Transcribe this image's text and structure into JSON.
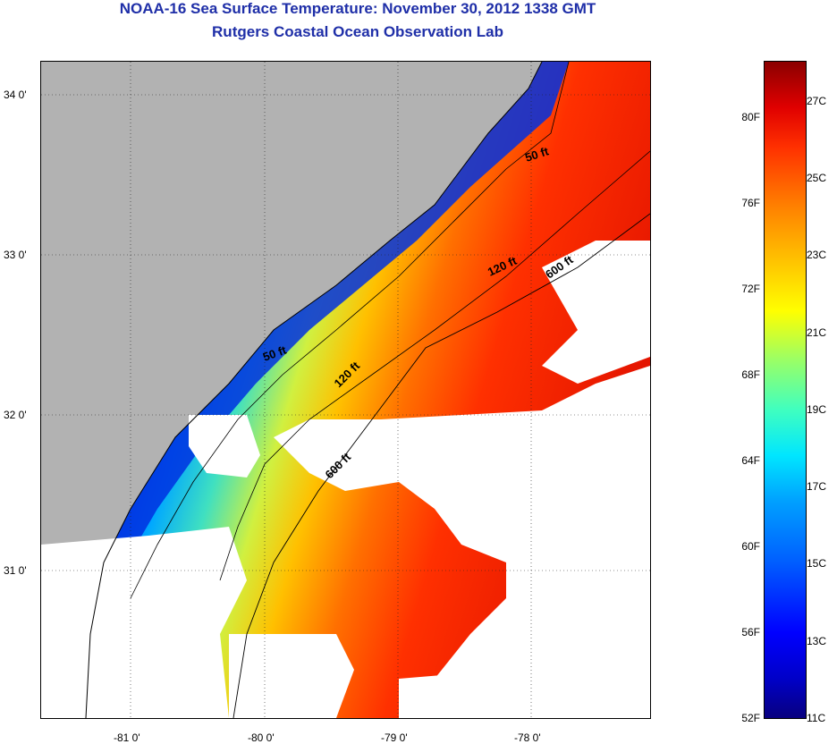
{
  "title": {
    "line1": "NOAA-16 Sea Surface Temperature:  November 30, 2012 1338 GMT",
    "line2": "Rutgers Coastal Ocean Observation Lab"
  },
  "map": {
    "lat_labels": [
      "34 0'",
      "33 0'",
      "32 0'",
      "31 0'"
    ],
    "lon_labels": [
      "-81 0'",
      "-80 0'",
      "-79 0'",
      "-78 0'"
    ],
    "isobaths": {
      "fifty_ft": "50 ft",
      "one_twenty_ft": "120 ft",
      "six_hundred_ft": "600 ft"
    },
    "colors": {
      "land": "#b2b2b2",
      "cloud": "#ffffff"
    }
  },
  "colorbar": {
    "fahrenheit": [
      "80F",
      "76F",
      "72F",
      "68F",
      "64F",
      "60F",
      "56F",
      "52F"
    ],
    "celsius": [
      "27C",
      "25C",
      "23C",
      "21C",
      "19C",
      "17C",
      "15C",
      "13C",
      "11C"
    ]
  }
}
